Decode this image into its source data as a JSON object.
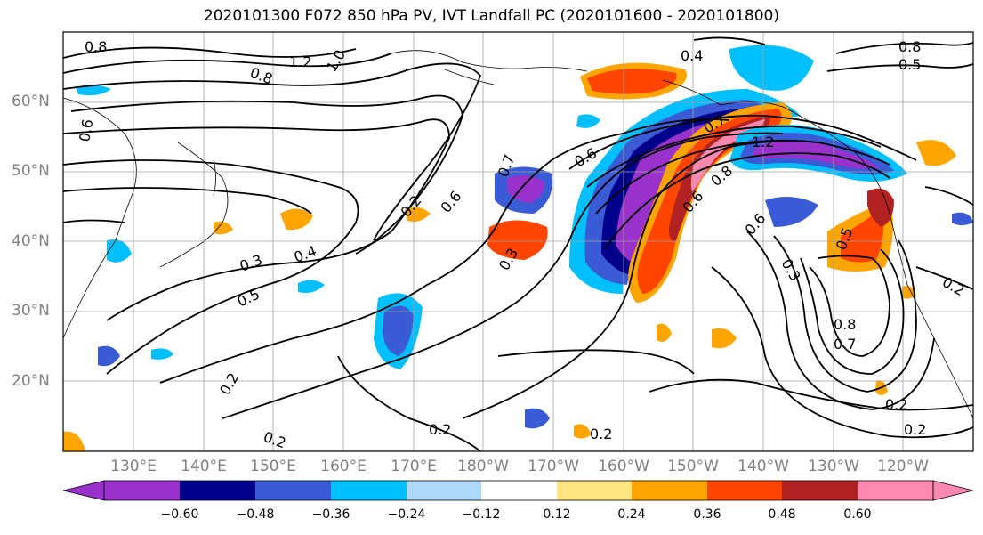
{
  "title": "2020101300 F072 850 hPa PV, IVT Landfall PC (2020101600 - 2020101800)",
  "lat_labels": [
    "60°N",
    "50°N",
    "40°N",
    "30°N",
    "20°N"
  ],
  "lon_labels": [
    "130°E",
    "140°E",
    "150°E",
    "160°E",
    "170°E",
    "180°W",
    "170°W",
    "160°W",
    "150°W",
    "140°W",
    "130°W",
    "120°W"
  ],
  "colorbar": {
    "ticks": [
      "−0.60",
      "−0.48",
      "−0.36",
      "−0.24",
      "−0.12",
      "0.12",
      "0.24",
      "0.36",
      "0.48",
      "0.60"
    ],
    "colors": [
      "#9932cc",
      "#00008b",
      "#3b5bd6",
      "#00bfff",
      "#add8f8",
      "#ffffff",
      "#ffe680",
      "#ffa500",
      "#ff4500",
      "#b22222",
      "#ff88b0"
    ]
  },
  "contour_labels": {
    "c1": "0.8",
    "c2": "1.2",
    "c3": "1.0",
    "c4": "0.8",
    "c5": "0.4",
    "c6": "0.8",
    "c7": "0.5",
    "c8": "0.6",
    "c9": "0.3",
    "c10": "0.4",
    "c11": "0.5",
    "c12": "0.2",
    "c13": "0.2",
    "c14": "0.2",
    "c15": "0.2",
    "c16": "0.2",
    "c17": "0.3",
    "c18": "0.6",
    "c19": "0.7",
    "c20": "0.8",
    "c21": "0.6",
    "c22": "0.6",
    "c23": "0.3",
    "c24": "0.5",
    "c25": "0.8",
    "c26": "0.7",
    "c27": "0.2",
    "c28": "0.2",
    "c29": "0.2",
    "c30": "0.7",
    "c31": "1.2",
    "c32": "0.6"
  }
}
